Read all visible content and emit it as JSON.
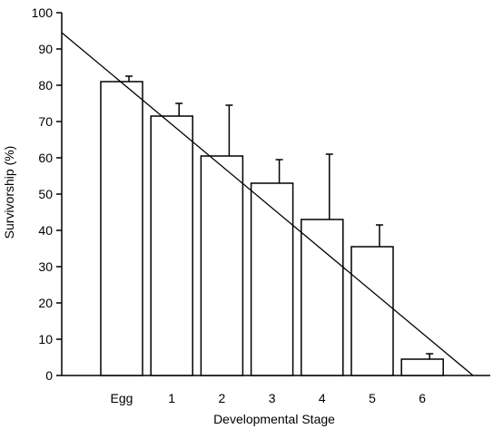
{
  "chart_data": {
    "type": "bar",
    "title": "",
    "xlabel": "Developmental Stage",
    "ylabel": "Survivorship (%)",
    "categories": [
      "Egg",
      "1",
      "2",
      "3",
      "4",
      "5",
      "6"
    ],
    "values": [
      81,
      71.5,
      60.5,
      53,
      43,
      35.5,
      4.5
    ],
    "error_plus": [
      1.5,
      3.5,
      14,
      6.5,
      18,
      6,
      1.5
    ],
    "ylim": [
      0,
      100
    ],
    "yticks": [
      0,
      10,
      20,
      30,
      40,
      50,
      60,
      70,
      80,
      90,
      100
    ],
    "trendline": {
      "type": "linear",
      "start_y_at_axis": 94.5,
      "end_y": 0
    },
    "grid": false,
    "legend": "none",
    "colors": {
      "bar_fill": "#ffffff",
      "stroke": "#000000"
    }
  }
}
